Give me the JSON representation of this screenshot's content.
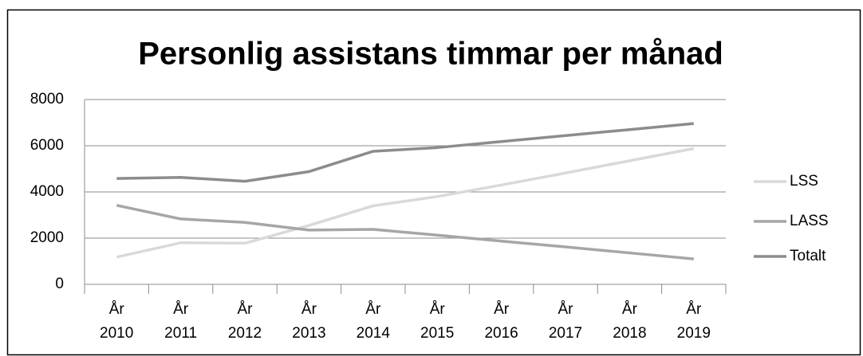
{
  "chart_data": {
    "type": "line",
    "title": "Personlig assistans timmar per månad",
    "categories": [
      "År 2010",
      "År 2011",
      "År 2012",
      "År 2013",
      "År 2014",
      "År 2015",
      "År 2016",
      "År 2017",
      "År 2018",
      "År 2019"
    ],
    "series": [
      {
        "name": "LSS",
        "color": "#d9d9d9",
        "values": [
          1180,
          1800,
          1780,
          2550,
          3400,
          3800,
          4300,
          4820,
          5350,
          5880
        ]
      },
      {
        "name": "LASS",
        "color": "#a6a6a6",
        "values": [
          3420,
          2830,
          2680,
          2350,
          2380,
          2130,
          1870,
          1620,
          1360,
          1100
        ]
      },
      {
        "name": "Totalt",
        "color": "#8c8c8c",
        "values": [
          4580,
          4630,
          4460,
          4880,
          5760,
          5920,
          6180,
          6440,
          6700,
          6960
        ]
      }
    ],
    "ylim": [
      0,
      8000
    ],
    "yticks": [
      0,
      2000,
      4000,
      6000,
      8000
    ],
    "grid": true,
    "legend": "right"
  }
}
